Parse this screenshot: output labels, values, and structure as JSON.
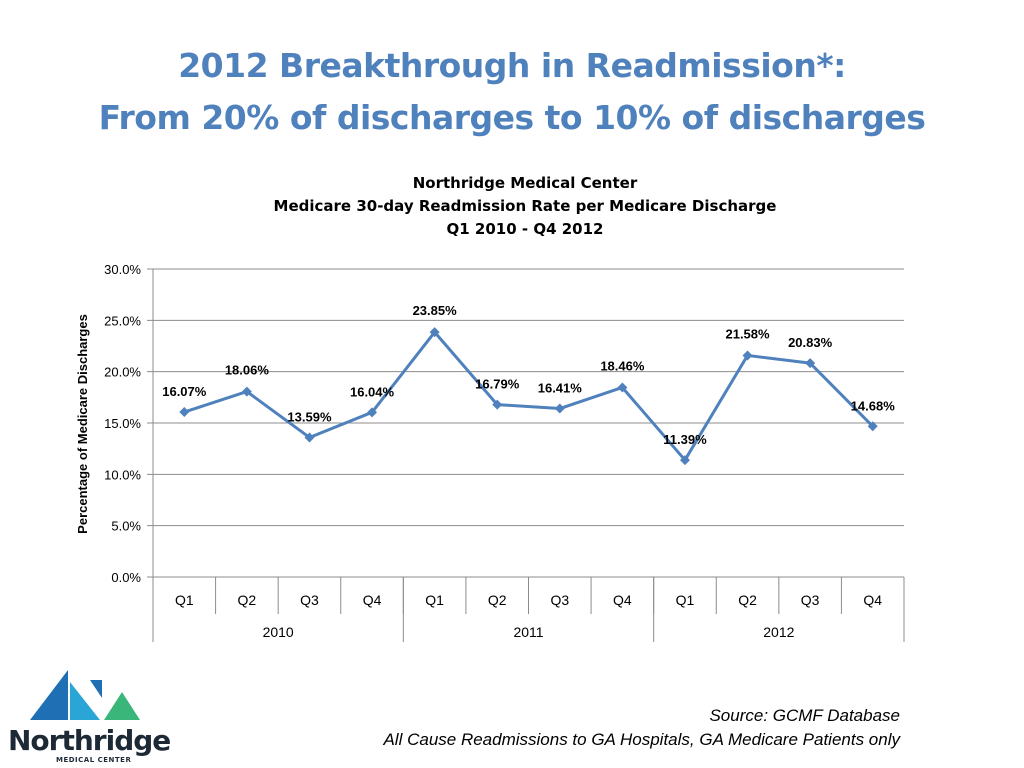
{
  "slide": {
    "title_line1": "2012 Breakthrough in Readmission*:",
    "title_line2": "From 20% of discharges to 10% of discharges"
  },
  "chart_data": {
    "type": "line",
    "title": [
      "Northridge Medical Center",
      "Medicare 30-day Readmission Rate per Medicare Discharge",
      "Q1 2010 - Q4 2012"
    ],
    "ylabel": "Percentage of Medicare Discharges",
    "xlabel": "",
    "categories": [
      "Q1",
      "Q2",
      "Q3",
      "Q4",
      "Q1",
      "Q2",
      "Q3",
      "Q4",
      "Q1",
      "Q2",
      "Q3",
      "Q4"
    ],
    "groups": [
      {
        "label": "2010",
        "span": 4
      },
      {
        "label": "2011",
        "span": 4
      },
      {
        "label": "2012",
        "span": 4
      }
    ],
    "series": [
      {
        "values": [
          16.07,
          18.06,
          13.59,
          16.04,
          23.85,
          16.79,
          16.41,
          18.46,
          11.39,
          21.58,
          20.83,
          14.68
        ]
      }
    ],
    "data_labels": [
      "16.07%",
      "18.06%",
      "13.59%",
      "16.04%",
      "23.85%",
      "16.79%",
      "16.41%",
      "18.46%",
      "11.39%",
      "21.58%",
      "20.83%",
      "14.68%"
    ],
    "yticks": [
      0,
      5,
      10,
      15,
      20,
      25,
      30
    ],
    "ytick_labels": [
      "0.0%",
      "5.0%",
      "10.0%",
      "15.0%",
      "20.0%",
      "25.0%",
      "30.0%"
    ],
    "ylim": [
      0,
      30
    ],
    "grid": true,
    "legend": "none",
    "line_color": "#4f81bd"
  },
  "footer": {
    "source_line1": "Source: GCMF Database",
    "source_line2": "All Cause Readmissions to GA Hospitals, GA Medicare Patients only"
  },
  "logo": {
    "name": "Northridge",
    "subtitle": "MEDICAL CENTER",
    "colors": [
      "#1f6fb5",
      "#2aa6d6",
      "#3ab67a"
    ]
  }
}
